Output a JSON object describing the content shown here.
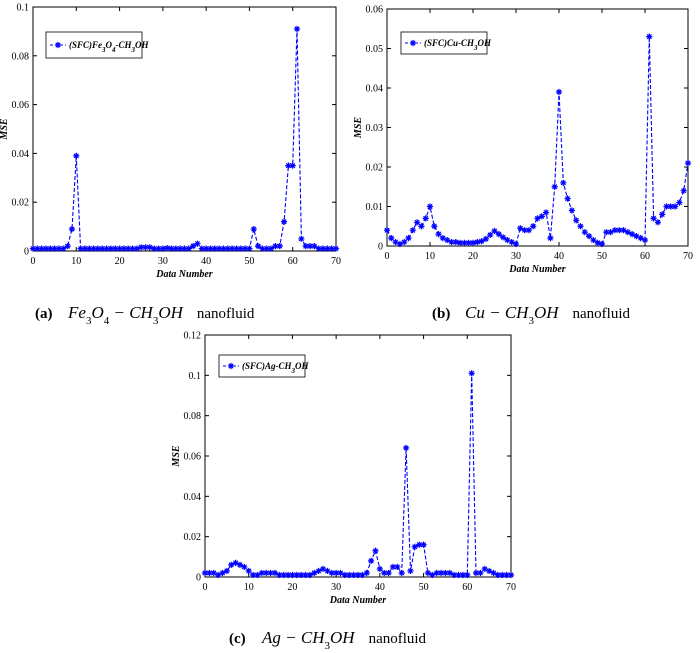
{
  "chart_data": [
    {
      "type": "line",
      "panel": "a",
      "caption_tag": "(a)",
      "caption_formula": "Fe3O4 − CH3OH",
      "caption_word": "nanofluid",
      "legend": "(SFC)Fe3O4-CH3OH",
      "xlabel": "Data Number",
      "ylabel": "MSE",
      "xlim": [
        0,
        70
      ],
      "ylim": [
        0,
        0.1
      ],
      "xticks": [
        "0",
        "10",
        "20",
        "30",
        "40",
        "50",
        "60",
        "70"
      ],
      "yticks": [
        "0",
        "0.02",
        "0.04",
        "0.06",
        "0.08",
        "0.1"
      ],
      "color": "#0000ff",
      "series": [
        {
          "name": "(SFC)Fe3O4-CH3OH",
          "x": [
            0,
            1,
            2,
            3,
            4,
            5,
            6,
            7,
            8,
            9,
            10,
            11,
            12,
            13,
            14,
            15,
            16,
            17,
            18,
            19,
            20,
            21,
            22,
            23,
            24,
            25,
            26,
            27,
            28,
            29,
            30,
            31,
            32,
            33,
            34,
            35,
            36,
            37,
            38,
            39,
            40,
            41,
            42,
            43,
            44,
            45,
            46,
            47,
            48,
            49,
            50,
            51,
            52,
            53,
            54,
            55,
            56,
            57,
            58,
            59,
            60,
            61,
            62,
            63,
            64,
            65,
            66,
            67,
            68,
            69,
            70
          ],
          "values": [
            0.001,
            0.001,
            0.001,
            0.001,
            0.001,
            0.001,
            0.001,
            0.001,
            0.002,
            0.009,
            0.039,
            0.001,
            0.001,
            0.001,
            0.001,
            0.001,
            0.001,
            0.001,
            0.001,
            0.001,
            0.001,
            0.001,
            0.001,
            0.001,
            0.001,
            0.0015,
            0.0015,
            0.0015,
            0.001,
            0.001,
            0.001,
            0.0012,
            0.001,
            0.001,
            0.001,
            0.001,
            0.001,
            0.002,
            0.003,
            0.001,
            0.001,
            0.001,
            0.001,
            0.001,
            0.001,
            0.001,
            0.001,
            0.001,
            0.001,
            0.001,
            0.001,
            0.009,
            0.002,
            0.001,
            0.001,
            0.001,
            0.002,
            0.002,
            0.012,
            0.035,
            0.035,
            0.091,
            0.005,
            0.002,
            0.002,
            0.002,
            0.001,
            0.001,
            0.001,
            0.001,
            0.001
          ]
        }
      ]
    },
    {
      "type": "line",
      "panel": "b",
      "caption_tag": "(b)",
      "caption_formula": "Cu − CH3OH",
      "caption_word": "nanofluid",
      "legend": "(SFC)Cu-CH3OH",
      "xlabel": "Data Number",
      "ylabel": "MSE",
      "xlim": [
        0,
        70
      ],
      "ylim": [
        0,
        0.06
      ],
      "xticks": [
        "0",
        "10",
        "20",
        "30",
        "40",
        "50",
        "60",
        "70"
      ],
      "yticks": [
        "0",
        "0.01",
        "0.02",
        "0.03",
        "0.04",
        "0.05",
        "0.06"
      ],
      "color": "#0000ff",
      "series": [
        {
          "name": "(SFC)Cu-CH3OH",
          "x": [
            0,
            1,
            2,
            3,
            4,
            5,
            6,
            7,
            8,
            9,
            10,
            11,
            12,
            13,
            14,
            15,
            16,
            17,
            18,
            19,
            20,
            21,
            22,
            23,
            24,
            25,
            26,
            27,
            28,
            29,
            30,
            31,
            32,
            33,
            34,
            35,
            36,
            37,
            38,
            39,
            40,
            41,
            42,
            43,
            44,
            45,
            46,
            47,
            48,
            49,
            50,
            51,
            52,
            53,
            54,
            55,
            56,
            57,
            58,
            59,
            60,
            61,
            62,
            63,
            64,
            65,
            66,
            67,
            68,
            69,
            70
          ],
          "values": [
            0.004,
            0.002,
            0.001,
            0.0005,
            0.001,
            0.002,
            0.004,
            0.006,
            0.005,
            0.007,
            0.01,
            0.005,
            0.003,
            0.002,
            0.0015,
            0.001,
            0.001,
            0.0008,
            0.0008,
            0.0008,
            0.0008,
            0.001,
            0.0012,
            0.0018,
            0.0028,
            0.0038,
            0.003,
            0.0022,
            0.0015,
            0.001,
            0.0005,
            0.0045,
            0.004,
            0.004,
            0.005,
            0.007,
            0.0075,
            0.0085,
            0.002,
            0.015,
            0.039,
            0.016,
            0.012,
            0.009,
            0.0065,
            0.005,
            0.0035,
            0.0025,
            0.0015,
            0.0008,
            0.0005,
            0.0035,
            0.0035,
            0.004,
            0.004,
            0.004,
            0.0035,
            0.003,
            0.0025,
            0.002,
            0.0015,
            0.053,
            0.007,
            0.006,
            0.008,
            0.01,
            0.01,
            0.01,
            0.011,
            0.014,
            0.021
          ]
        }
      ]
    },
    {
      "type": "line",
      "panel": "c",
      "caption_tag": "(c)",
      "caption_formula": "Ag − CH3OH",
      "caption_word": "nanofluid",
      "legend": "(SFC)Ag-CH3OH",
      "xlabel": "Data Number",
      "ylabel": "MSE",
      "xlim": [
        0,
        70
      ],
      "ylim": [
        0,
        0.12
      ],
      "xticks": [
        "0",
        "10",
        "20",
        "30",
        "40",
        "50",
        "60",
        "70"
      ],
      "yticks": [
        "0",
        "0.02",
        "0.04",
        "0.06",
        "0.08",
        "0.1",
        "0.12"
      ],
      "color": "#0000ff",
      "series": [
        {
          "name": "(SFC)Ag-CH3OH",
          "x": [
            0,
            1,
            2,
            3,
            4,
            5,
            6,
            7,
            8,
            9,
            10,
            11,
            12,
            13,
            14,
            15,
            16,
            17,
            18,
            19,
            20,
            21,
            22,
            23,
            24,
            25,
            26,
            27,
            28,
            29,
            30,
            31,
            32,
            33,
            34,
            35,
            36,
            37,
            38,
            39,
            40,
            41,
            42,
            43,
            44,
            45,
            46,
            47,
            48,
            49,
            50,
            51,
            52,
            53,
            54,
            55,
            56,
            57,
            58,
            59,
            60,
            61,
            62,
            63,
            64,
            65,
            66,
            67,
            68,
            69,
            70
          ],
          "values": [
            0.002,
            0.002,
            0.002,
            0.001,
            0.002,
            0.003,
            0.006,
            0.007,
            0.006,
            0.005,
            0.003,
            0.001,
            0.001,
            0.002,
            0.002,
            0.002,
            0.002,
            0.001,
            0.001,
            0.001,
            0.001,
            0.001,
            0.001,
            0.001,
            0.001,
            0.002,
            0.003,
            0.004,
            0.003,
            0.002,
            0.002,
            0.002,
            0.001,
            0.001,
            0.001,
            0.001,
            0.001,
            0.002,
            0.008,
            0.013,
            0.004,
            0.002,
            0.002,
            0.005,
            0.005,
            0.002,
            0.064,
            0.003,
            0.015,
            0.016,
            0.016,
            0.002,
            0.001,
            0.002,
            0.002,
            0.002,
            0.002,
            0.001,
            0.001,
            0.001,
            0.001,
            0.101,
            0.002,
            0.002,
            0.004,
            0.003,
            0.002,
            0.001,
            0.001,
            0.001,
            0.001
          ]
        }
      ]
    }
  ]
}
